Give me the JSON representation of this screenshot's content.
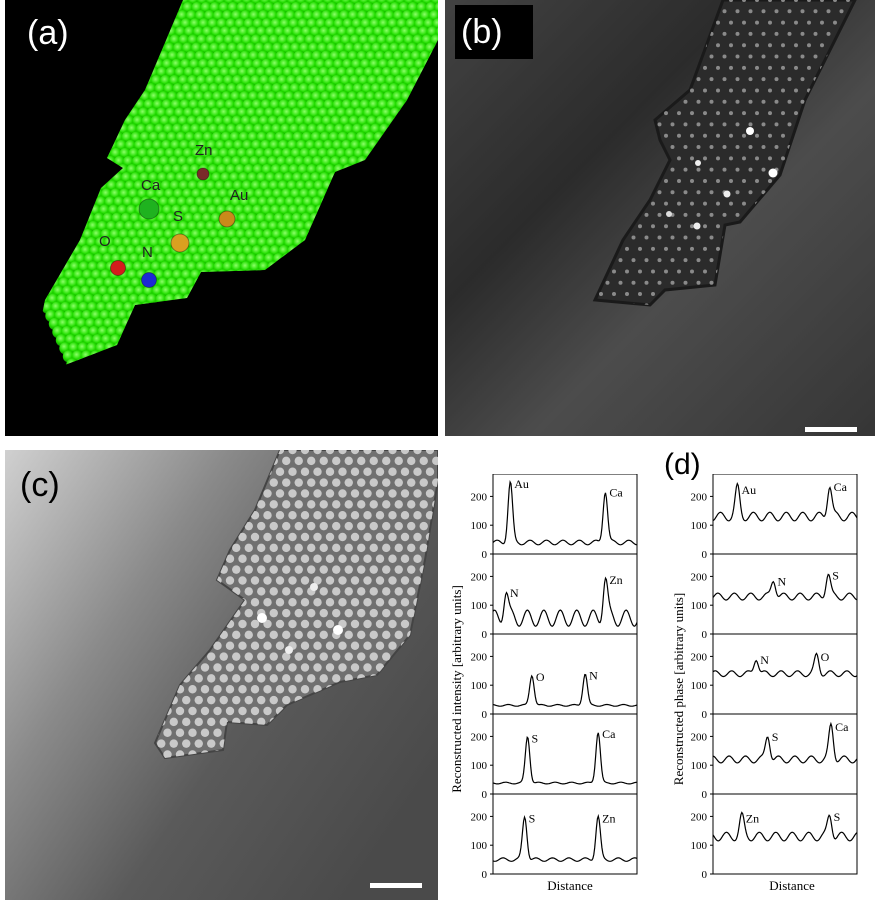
{
  "panels": {
    "a": {
      "label": "(a)",
      "atoms": [
        {
          "symbol": "Zn",
          "color": "#7a2a2a"
        },
        {
          "symbol": "Ca",
          "color": "#1fb21f"
        },
        {
          "symbol": "Au",
          "color": "#c98a1a"
        },
        {
          "symbol": "S",
          "color": "#d9a020"
        },
        {
          "symbol": "O",
          "color": "#d41c1c"
        },
        {
          "symbol": "N",
          "color": "#1c2ad4"
        }
      ],
      "lattice_color": "#22dd00"
    },
    "b": {
      "label": "(b)"
    },
    "c": {
      "label": "(c)"
    },
    "d": {
      "label": "(d)",
      "intensity_ylabel": "Reconstructed intensity [arbitrary units]",
      "phase_ylabel": "Reconstructed phase [arbitrary units]",
      "xlabel": "Distance"
    }
  },
  "chart_data": [
    {
      "type": "line",
      "column": "intensity",
      "ylim": [
        0,
        250
      ],
      "yticks": [
        0,
        100,
        200
      ],
      "series": [
        {
          "peaks": [
            {
              "x": 0.12,
              "y": 250,
              "label": "Au"
            },
            {
              "x": 0.78,
              "y": 220,
              "label": "Ca"
            }
          ],
          "baseline": 40,
          "ripple": 8
        }
      ]
    },
    {
      "type": "line",
      "column": "intensity",
      "ylim": [
        0,
        250
      ],
      "yticks": [
        0,
        100,
        200
      ],
      "series": [
        {
          "peaks": [
            {
              "x": 0.09,
              "y": 150,
              "label": "N"
            },
            {
              "x": 0.78,
              "y": 195,
              "label": "Zn"
            }
          ],
          "baseline": 55,
          "ripple": 28
        }
      ]
    },
    {
      "type": "line",
      "column": "intensity",
      "ylim": [
        0,
        250
      ],
      "yticks": [
        0,
        100,
        200
      ],
      "series": [
        {
          "peaks": [
            {
              "x": 0.27,
              "y": 135,
              "label": "O"
            },
            {
              "x": 0.64,
              "y": 140,
              "label": "N"
            }
          ],
          "baseline": 30,
          "ripple": 3
        }
      ]
    },
    {
      "type": "line",
      "column": "intensity",
      "ylim": [
        0,
        250
      ],
      "yticks": [
        0,
        100,
        200
      ],
      "series": [
        {
          "peaks": [
            {
              "x": 0.24,
              "y": 200,
              "label": "S"
            },
            {
              "x": 0.73,
              "y": 215,
              "label": "Ca"
            }
          ],
          "baseline": 38,
          "ripple": 3
        }
      ]
    },
    {
      "type": "line",
      "column": "intensity",
      "ylim": [
        0,
        250
      ],
      "yticks": [
        0,
        100,
        200
      ],
      "series": [
        {
          "peaks": [
            {
              "x": 0.22,
              "y": 200,
              "label": "S"
            },
            {
              "x": 0.73,
              "y": 200,
              "label": "Zn"
            }
          ],
          "baseline": 50,
          "ripple": 6
        }
      ]
    },
    {
      "type": "line",
      "column": "phase",
      "ylim": [
        0,
        250
      ],
      "yticks": [
        0,
        100,
        200
      ],
      "series": [
        {
          "peaks": [
            {
              "x": 0.17,
              "y": 230,
              "label": "Au"
            },
            {
              "x": 0.81,
              "y": 240,
              "label": "Ca"
            }
          ],
          "baseline": 130,
          "ripple": 15
        }
      ]
    },
    {
      "type": "line",
      "column": "phase",
      "ylim": [
        0,
        250
      ],
      "yticks": [
        0,
        100,
        200
      ],
      "series": [
        {
          "peaks": [
            {
              "x": 0.42,
              "y": 190,
              "label": "N"
            },
            {
              "x": 0.8,
              "y": 210,
              "label": "S"
            }
          ],
          "baseline": 130,
          "ripple": 12
        }
      ]
    },
    {
      "type": "line",
      "column": "phase",
      "ylim": [
        0,
        250
      ],
      "yticks": [
        0,
        100,
        200
      ],
      "series": [
        {
          "peaks": [
            {
              "x": 0.3,
              "y": 195,
              "label": "N"
            },
            {
              "x": 0.72,
              "y": 205,
              "label": "O"
            }
          ],
          "baseline": 140,
          "ripple": 10
        }
      ]
    },
    {
      "type": "line",
      "column": "phase",
      "ylim": [
        0,
        250
      ],
      "yticks": [
        0,
        100,
        200
      ],
      "series": [
        {
          "peaks": [
            {
              "x": 0.38,
              "y": 205,
              "label": "S"
            },
            {
              "x": 0.82,
              "y": 240,
              "label": "Ca"
            }
          ],
          "baseline": 120,
          "ripple": 12
        }
      ]
    },
    {
      "type": "line",
      "column": "phase",
      "ylim": [
        0,
        250
      ],
      "yticks": [
        0,
        100,
        200
      ],
      "series": [
        {
          "peaks": [
            {
              "x": 0.2,
              "y": 200,
              "label": "Zn"
            },
            {
              "x": 0.81,
              "y": 205,
              "label": "S"
            }
          ],
          "baseline": 130,
          "ripple": 15
        }
      ]
    }
  ]
}
